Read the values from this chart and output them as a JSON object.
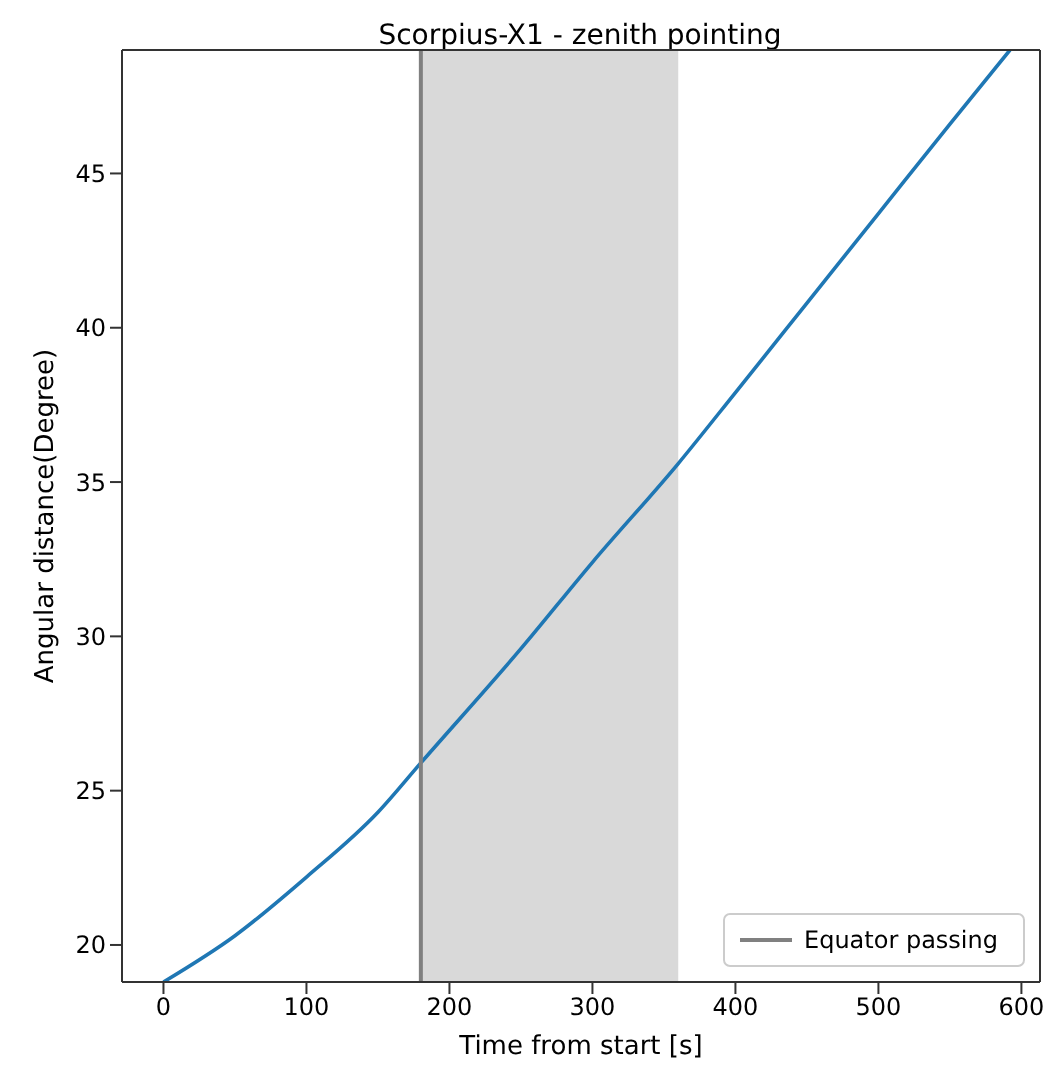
{
  "chart_data": {
    "type": "line",
    "title": "Scorpius-X1 - zenith pointing",
    "xlabel": "Time from start [s]",
    "ylabel": "Angular distance(Degree)",
    "x": [
      0,
      50,
      100,
      150,
      180,
      250,
      300,
      360,
      400,
      450,
      500,
      550,
      592
    ],
    "series": [
      {
        "color": "#1f77b4",
        "values": [
          18.8,
          20.3,
          22.2,
          24.3,
          25.9,
          29.6,
          32.4,
          35.6,
          37.9,
          40.8,
          43.7,
          46.6,
          49.0
        ]
      },
      {
        "name": "Equator passing",
        "color": "#808080",
        "x": [
          180,
          180
        ],
        "values": [
          18.8,
          49.0
        ]
      }
    ],
    "xlim": [
      -29,
      613
    ],
    "xticks": [
      0,
      100,
      200,
      300,
      400,
      500,
      600
    ],
    "ylim": [
      18.8,
      49.0
    ],
    "yticks": [
      20,
      25,
      30,
      35,
      40,
      45
    ],
    "bands": [
      {
        "axis": "x",
        "from": 180,
        "to": 360,
        "color": "#d9d9d9"
      }
    ],
    "legend": "bottom right",
    "marker": "none",
    "line_style": "solid"
  }
}
